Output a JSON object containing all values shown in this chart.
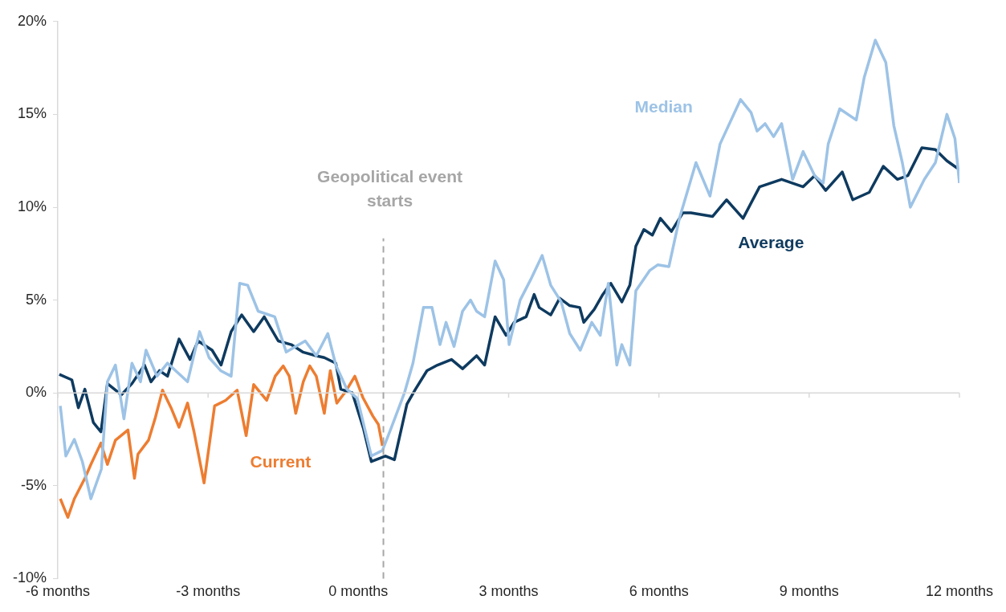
{
  "chart_data": {
    "type": "line",
    "marker": "none",
    "xlim": [
      -6,
      12
    ],
    "xticks": [
      {
        "value": -6,
        "label": "-6 months"
      },
      {
        "value": -3,
        "label": "-3 months"
      },
      {
        "value": 0,
        "label": "0 months"
      },
      {
        "value": 3,
        "label": "3 months"
      },
      {
        "value": 6,
        "label": "6 months"
      },
      {
        "value": 9,
        "label": "9 months"
      },
      {
        "value": 12,
        "label": "12 months"
      }
    ],
    "ylim": [
      -10,
      20
    ],
    "yticks": [
      {
        "value": -10,
        "label": "-10%"
      },
      {
        "value": -5,
        "label": "-5%"
      },
      {
        "value": 0,
        "label": "0%"
      },
      {
        "value": 5,
        "label": "5%"
      },
      {
        "value": 10,
        "label": "10%"
      },
      {
        "value": 15,
        "label": "15%"
      },
      {
        "value": 20,
        "label": "20%"
      }
    ],
    "ref_lines": [
      {
        "axis": "x",
        "value": 0.5,
        "label": "Geopolitical event starts",
        "color": "#a6a6a6",
        "line_style": "dashed"
      }
    ],
    "series": [
      {
        "name": "Median",
        "color": "#9dc3e6",
        "x": [
          -5.95,
          -5.84,
          -5.67,
          -5.51,
          -5.34,
          -5.13,
          -5.01,
          -4.85,
          -4.68,
          -4.52,
          -4.35,
          -4.24,
          -4.02,
          -3.81,
          -3.41,
          -3.17,
          -2.98,
          -2.75,
          -2.54,
          -2.37,
          -2.21,
          -2.0,
          -1.67,
          -1.44,
          -1.06,
          -0.84,
          -0.61,
          -0.45,
          -0.23,
          -0.02,
          0.26,
          0.48,
          0.64,
          0.92,
          1.09,
          1.3,
          1.47,
          1.63,
          1.75,
          1.91,
          2.08,
          2.24,
          2.36,
          2.52,
          2.73,
          2.9,
          3.01,
          3.23,
          3.44,
          3.67,
          3.84,
          4.05,
          4.22,
          4.43,
          4.66,
          4.83,
          4.99,
          5.16,
          5.26,
          5.42,
          5.54,
          5.82,
          5.98,
          6.2,
          6.41,
          6.74,
          7.02,
          7.22,
          7.63,
          7.84,
          7.96,
          8.12,
          8.29,
          8.45,
          8.67,
          8.88,
          9.11,
          9.28,
          9.38,
          9.61,
          9.94,
          10.1,
          10.32,
          10.53,
          10.69,
          10.86,
          11.02,
          11.3,
          11.52,
          11.75,
          11.91,
          12.0
        ],
        "values": [
          -0.7,
          -3.4,
          -2.5,
          -3.7,
          -5.7,
          -4.1,
          0.6,
          1.5,
          -1.4,
          1.6,
          0.6,
          2.3,
          0.9,
          1.6,
          0.6,
          3.3,
          1.9,
          1.2,
          0.9,
          5.9,
          5.8,
          4.4,
          4.1,
          2.2,
          2.8,
          2.0,
          3.2,
          1.5,
          0.2,
          -0.3,
          -3.4,
          -3.1,
          -2.0,
          0.0,
          1.6,
          4.6,
          4.6,
          2.6,
          3.8,
          2.5,
          4.4,
          5.0,
          4.4,
          4.1,
          7.1,
          6.1,
          2.6,
          5.0,
          6.1,
          7.4,
          5.8,
          4.9,
          3.2,
          2.3,
          3.8,
          3.1,
          5.9,
          1.5,
          2.6,
          1.5,
          5.5,
          6.6,
          6.9,
          6.8,
          9.4,
          12.4,
          10.6,
          13.4,
          15.8,
          15.1,
          14.1,
          14.5,
          13.8,
          14.5,
          11.5,
          13.0,
          11.7,
          11.3,
          13.4,
          15.3,
          14.7,
          17.0,
          19.0,
          17.8,
          14.4,
          12.4,
          10.0,
          11.5,
          12.4,
          15.0,
          13.7,
          11.3
        ]
      },
      {
        "name": "Average",
        "color": "#0e3a5f",
        "x": [
          -5.97,
          -5.72,
          -5.59,
          -5.46,
          -5.29,
          -5.14,
          -5.01,
          -4.73,
          -4.52,
          -4.27,
          -4.14,
          -3.97,
          -3.81,
          -3.58,
          -3.36,
          -3.2,
          -2.92,
          -2.74,
          -2.54,
          -2.33,
          -2.09,
          -1.88,
          -1.6,
          -1.34,
          -1.11,
          -0.84,
          -0.68,
          -0.45,
          -0.35,
          -0.12,
          0.1,
          0.26,
          0.54,
          0.72,
          0.97,
          1.14,
          1.37,
          1.58,
          1.86,
          2.08,
          2.36,
          2.52,
          2.73,
          2.95,
          3.11,
          3.35,
          3.51,
          3.61,
          3.84,
          4.02,
          4.22,
          4.42,
          4.5,
          4.71,
          4.88,
          5.04,
          5.26,
          5.42,
          5.54,
          5.7,
          5.87,
          6.03,
          6.25,
          6.48,
          6.64,
          7.07,
          7.35,
          7.68,
          8.01,
          8.45,
          8.88,
          9.11,
          9.33,
          9.66,
          9.87,
          10.2,
          10.48,
          10.76,
          10.97,
          11.25,
          11.52,
          11.75,
          11.96
        ],
        "values": [
          1.0,
          0.7,
          -0.8,
          0.2,
          -1.6,
          -2.1,
          0.5,
          -0.1,
          0.5,
          1.5,
          0.6,
          1.2,
          0.9,
          2.9,
          1.8,
          2.8,
          2.3,
          1.5,
          3.3,
          4.2,
          3.3,
          4.1,
          2.8,
          2.6,
          2.2,
          2.0,
          1.9,
          1.6,
          0.2,
          0.0,
          -1.9,
          -3.7,
          -3.4,
          -3.6,
          -0.6,
          0.2,
          1.2,
          1.5,
          1.8,
          1.3,
          2.0,
          1.5,
          4.1,
          3.1,
          3.8,
          4.1,
          5.3,
          4.6,
          4.2,
          5.1,
          4.7,
          4.6,
          3.8,
          4.5,
          5.3,
          5.9,
          4.9,
          5.8,
          7.9,
          8.8,
          8.5,
          9.4,
          8.7,
          9.7,
          9.7,
          9.5,
          10.4,
          9.4,
          11.1,
          11.5,
          11.1,
          11.7,
          10.9,
          11.9,
          10.4,
          10.8,
          12.2,
          11.5,
          11.7,
          13.2,
          13.1,
          12.5,
          12.1
        ]
      },
      {
        "name": "Current",
        "color": "#ed7d31",
        "x": [
          -5.95,
          -5.8,
          -5.67,
          -5.46,
          -5.34,
          -5.14,
          -5.01,
          -4.85,
          -4.6,
          -4.47,
          -4.4,
          -4.19,
          -4.06,
          -3.91,
          -3.74,
          -3.58,
          -3.41,
          -3.28,
          -3.08,
          -2.87,
          -2.65,
          -2.42,
          -2.24,
          -2.09,
          -1.83,
          -1.66,
          -1.5,
          -1.38,
          -1.25,
          -1.1,
          -0.97,
          -0.84,
          -0.68,
          -0.56,
          -0.43,
          -0.26,
          -0.07,
          0.09,
          0.29,
          0.4,
          0.48
        ],
        "values": [
          -5.7,
          -6.7,
          -5.7,
          -4.6,
          -3.85,
          -2.7,
          -3.85,
          -2.55,
          -2.0,
          -4.6,
          -3.3,
          -2.55,
          -1.4,
          0.15,
          -0.8,
          -1.85,
          -0.55,
          -2.1,
          -4.85,
          -0.7,
          -0.4,
          0.15,
          -2.3,
          0.45,
          -0.4,
          0.9,
          1.45,
          0.9,
          -1.1,
          0.6,
          1.45,
          0.9,
          -1.1,
          1.2,
          -0.55,
          0.05,
          0.9,
          -0.25,
          -1.25,
          -1.7,
          -2.85
        ]
      }
    ]
  }
}
